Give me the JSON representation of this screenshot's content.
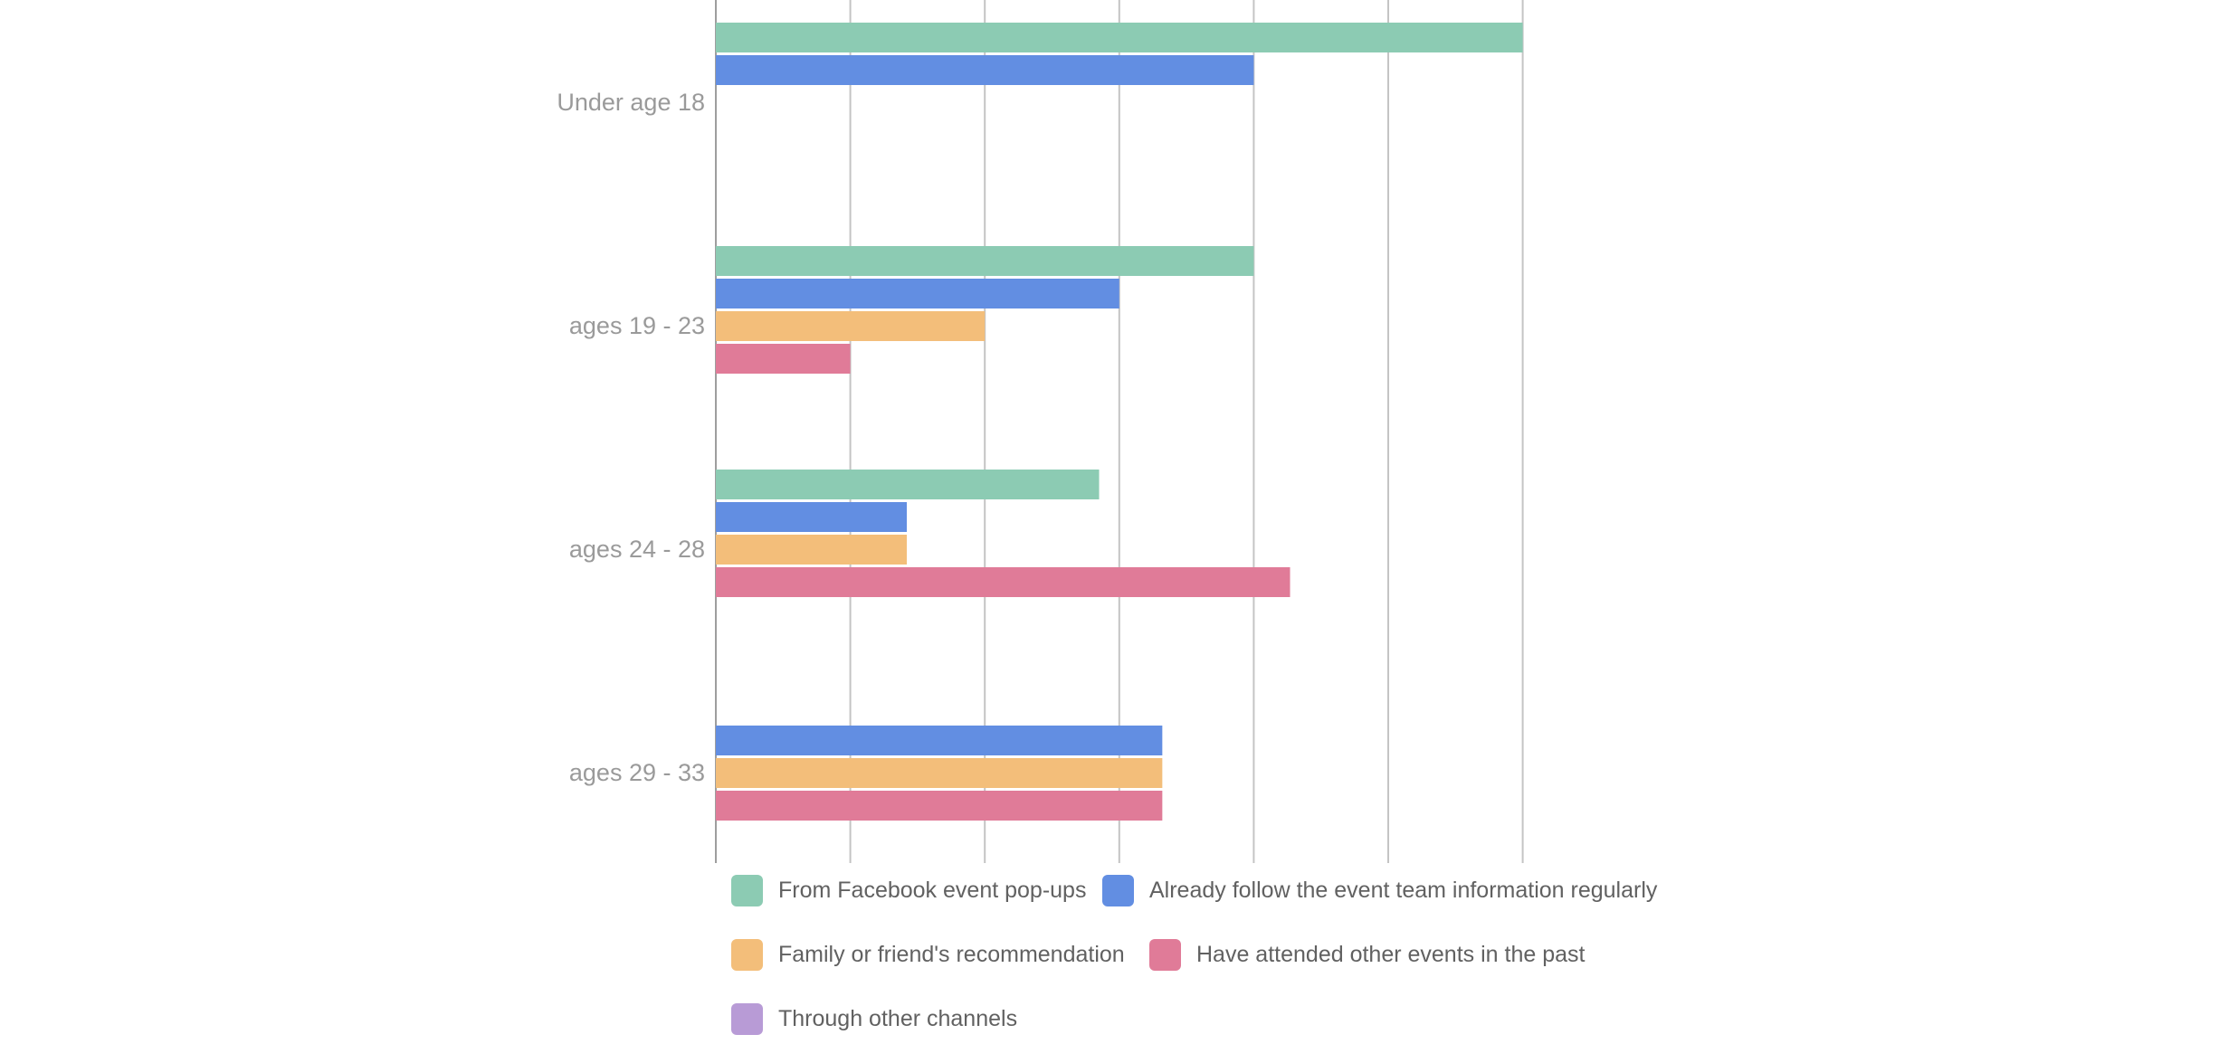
{
  "chart_data": {
    "type": "bar",
    "orientation": "horizontal",
    "title": "",
    "xlabel": "",
    "ylabel": "",
    "categories": [
      "Under age 18",
      "ages 19 - 23",
      "ages 24 - 28",
      "ages 29 - 33"
    ],
    "xlim": [
      0,
      6
    ],
    "grid": true,
    "tick_labels_shown": false,
    "legend_position": "bottom",
    "series": [
      {
        "name": "From Facebook event pop-ups",
        "color": "#8ccbb3",
        "values": [
          6,
          4,
          2.85,
          0
        ]
      },
      {
        "name": "Already follow the event team information regularly",
        "color": "#628ee2",
        "values": [
          4,
          3,
          1.42,
          3.32
        ]
      },
      {
        "name": "Family or friend's recommendation",
        "color": "#f3be7a",
        "values": [
          0,
          2,
          1.42,
          3.32
        ]
      },
      {
        "name": "Have attended other events in the past",
        "color": "#e07b98",
        "values": [
          0,
          1,
          4.27,
          3.32
        ]
      },
      {
        "name": "Through other channels",
        "color": "#b89bd6",
        "values": [
          0,
          0,
          0,
          0
        ]
      }
    ]
  }
}
